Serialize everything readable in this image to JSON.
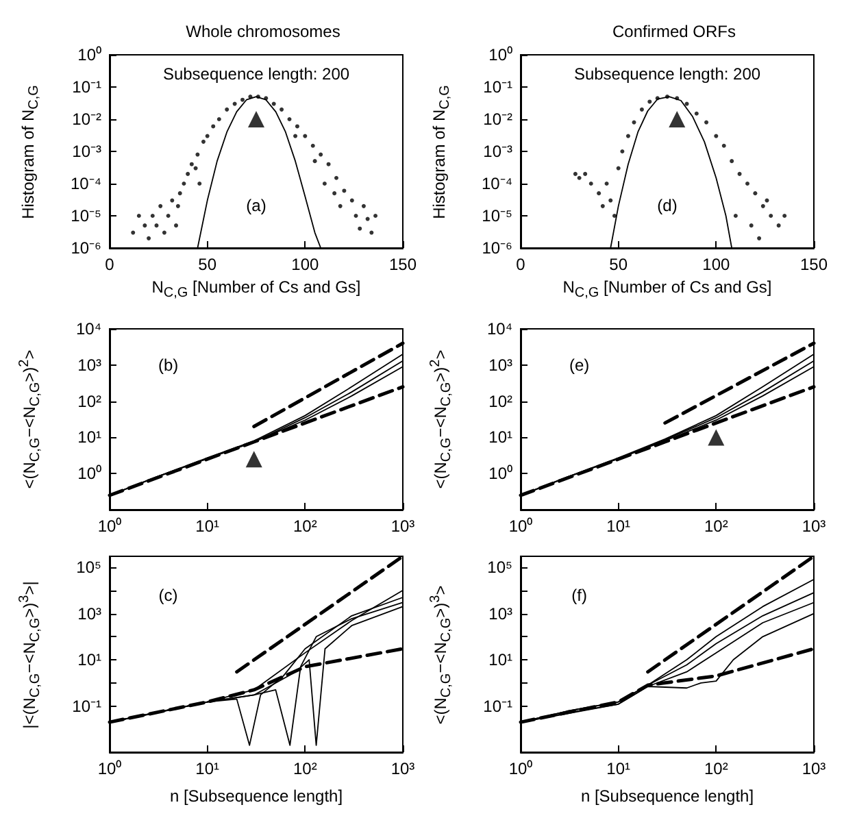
{
  "chart_data": [
    {
      "type": "scatter",
      "title": "Whole chromosomes",
      "xlabel": "N$_{C,G}$ [Number of Cs and Gs]",
      "ylabel": "Histogram of N$_{C,G}$",
      "log": "y",
      "xlim": [
        0,
        150
      ],
      "xticks": [
        0,
        50,
        100,
        150
      ],
      "ylim": [
        1e-06,
        1
      ],
      "yticks": [
        {
          "value": 1e-06,
          "label": "10⁻⁶"
        },
        {
          "value": 1e-05,
          "label": "10⁻⁵"
        },
        {
          "value": 0.0001,
          "label": "10⁻⁴"
        },
        {
          "value": 0.001,
          "label": "10⁻³"
        },
        {
          "value": 0.01,
          "label": "10⁻²"
        },
        {
          "value": 0.1,
          "label": "10⁻¹"
        },
        {
          "value": 1,
          "label": "10⁰"
        }
      ],
      "grid": false,
      "annotations": [
        "Subsequence length: 200",
        "(a)"
      ],
      "series": [
        {
          "marker": "circle",
          "color": "#000000",
          "x": [
            12,
            15,
            18,
            20,
            22,
            24,
            26,
            28,
            30,
            32,
            34,
            35,
            36,
            38,
            40,
            42,
            44,
            45,
            46,
            48,
            50,
            53,
            56,
            60,
            64,
            68,
            72,
            76,
            80,
            84,
            88,
            92,
            95,
            96,
            100,
            104,
            105,
            108,
            110,
            112,
            115,
            116,
            118,
            120,
            124,
            126,
            128,
            130,
            132,
            134,
            136
          ],
          "values": [
            3e-06,
            1e-05,
            5e-06,
            2e-06,
            1e-05,
            5e-06,
            2e-05,
            3e-06,
            1e-05,
            3e-05,
            5e-06,
            2e-05,
            5e-05,
            0.0001,
            0.0002,
            0.0004,
            0.0003,
            0.0008,
            0.0001,
            0.002,
            0.003,
            0.006,
            0.01,
            0.02,
            0.03,
            0.04,
            0.05,
            0.05,
            0.045,
            0.03,
            0.02,
            0.01,
            0.003,
            0.006,
            0.003,
            0.0015,
            0.0005,
            0.0008,
            0.0001,
            0.0004,
            5e-05,
            0.00015,
            2e-05,
            6e-05,
            3e-05,
            1e-05,
            4e-06,
            2e-05,
            8e-06,
            3e-06,
            1e-05
          ]
        },
        {
          "type": "line",
          "marker": "none",
          "line_style": "solid",
          "color": "#000000",
          "x": [
            45,
            50,
            55,
            60,
            65,
            70,
            75,
            80,
            85,
            90,
            95,
            100,
            105,
            108
          ],
          "values": [
            1e-06,
            3e-05,
            0.0005,
            0.004,
            0.017,
            0.04,
            0.05,
            0.04,
            0.017,
            0.004,
            0.0005,
            4e-05,
            3e-06,
            1e-06
          ]
        },
        {
          "marker": "triangle",
          "color": "#000000",
          "x": [
            75
          ],
          "values": [
            0.01
          ]
        }
      ]
    },
    {
      "type": "line",
      "ylabel": "<(N$_{C,G}$−<N$_{C,G}$>)$^{2}$>",
      "log": "xy",
      "xlim": [
        1,
        1000
      ],
      "xticks": [
        {
          "value": 1,
          "label": "10⁰"
        },
        {
          "value": 10,
          "label": "10¹"
        },
        {
          "value": 100,
          "label": "10²"
        },
        {
          "value": 1000,
          "label": "10³"
        }
      ],
      "ylim": [
        0.1,
        10000
      ],
      "yticks": [
        {
          "value": 1,
          "label": "10⁰"
        },
        {
          "value": 10,
          "label": "10¹"
        },
        {
          "value": 100,
          "label": "10²"
        },
        {
          "value": 1000,
          "label": "10³"
        },
        {
          "value": 10000,
          "label": "10⁴"
        }
      ],
      "grid": false,
      "annotations": [
        "(b)"
      ],
      "series": [
        {
          "marker": "none",
          "line_style": "solid",
          "color": "#000000",
          "x": [
            1,
            3,
            10,
            30,
            100,
            300,
            1000
          ],
          "values": [
            0.25,
            0.8,
            2.7,
            8,
            40,
            250,
            2000
          ]
        },
        {
          "marker": "none",
          "line_style": "solid",
          "color": "#000000",
          "x": [
            1,
            3,
            10,
            30,
            100,
            300,
            1000
          ],
          "values": [
            0.25,
            0.8,
            2.6,
            7.5,
            35,
            180,
            1300
          ]
        },
        {
          "marker": "none",
          "line_style": "solid",
          "color": "#000000",
          "x": [
            1,
            3,
            10,
            30,
            100,
            300,
            1000
          ],
          "values": [
            0.25,
            0.8,
            2.6,
            7.5,
            30,
            140,
            900
          ]
        },
        {
          "marker": "none",
          "line_style": "dashed",
          "color": "#000000",
          "x": [
            1,
            10,
            30,
            100,
            1000
          ],
          "values": [
            0.25,
            2.5,
            7.5,
            25,
            250
          ]
        },
        {
          "marker": "none",
          "line_style": "dashed",
          "color": "#000000",
          "x": [
            30,
            1000
          ],
          "values": [
            20,
            4000
          ]
        },
        {
          "type": "scatter",
          "marker": "triangle",
          "color": "#000000",
          "x": [
            30
          ],
          "values": [
            2.5
          ]
        }
      ]
    },
    {
      "type": "line",
      "xlabel": "n [Subsequence length]",
      "ylabel": "|<(N$_{C,G}$−<N$_{C,G}$>)$^{3}$>|",
      "log": "xy",
      "xlim": [
        1,
        1000
      ],
      "xticks": [
        {
          "value": 1,
          "label": "10⁰"
        },
        {
          "value": 10,
          "label": "10¹"
        },
        {
          "value": 100,
          "label": "10²"
        },
        {
          "value": 1000,
          "label": "10³"
        }
      ],
      "ylim": [
        0.001,
        300000
      ],
      "yticks": [
        {
          "value": 0.1,
          "label": "10⁻¹"
        },
        {
          "value": 1,
          "label": null
        },
        {
          "value": 10,
          "label": "10¹"
        },
        {
          "value": 100,
          "label": null
        },
        {
          "value": 1000,
          "label": "10³"
        },
        {
          "value": 10000,
          "label": null
        },
        {
          "value": 100000,
          "label": "10⁵"
        }
      ],
      "grid": false,
      "annotations": [
        "(c)"
      ],
      "series": [
        {
          "marker": "none",
          "line_style": "solid",
          "color": "#000000",
          "x": [
            1,
            3,
            10,
            30,
            100,
            300,
            1000
          ],
          "values": [
            0.02,
            0.05,
            0.15,
            0.5,
            20,
            500,
            10000
          ]
        },
        {
          "marker": "none",
          "line_style": "solid",
          "color": "#000000",
          "x": [
            1,
            10,
            20,
            27,
            35,
            60,
            100,
            300,
            1000
          ],
          "values": [
            0.02,
            0.15,
            0.2,
            0.002,
            0.3,
            2,
            30,
            800,
            5000
          ]
        },
        {
          "marker": "none",
          "line_style": "solid",
          "color": "#000000",
          "x": [
            1,
            10,
            30,
            50,
            70,
            90,
            130,
            300,
            1000
          ],
          "values": [
            0.02,
            0.15,
            0.3,
            0.5,
            0.002,
            5,
            100,
            600,
            3000
          ]
        },
        {
          "marker": "none",
          "line_style": "solid",
          "color": "#000000",
          "x": [
            1,
            10,
            30,
            80,
            110,
            130,
            160,
            300,
            1000
          ],
          "values": [
            0.02,
            0.15,
            0.3,
            3,
            10,
            0.002,
            30,
            300,
            2000
          ]
        },
        {
          "marker": "none",
          "line_style": "dashed",
          "color": "#000000",
          "x": [
            1,
            10,
            30,
            100,
            1000
          ],
          "values": [
            0.02,
            0.15,
            0.5,
            5,
            30
          ]
        },
        {
          "marker": "none",
          "line_style": "dashed",
          "color": "#000000",
          "x": [
            20,
            1000
          ],
          "values": [
            3,
            300000
          ]
        }
      ]
    },
    {
      "type": "scatter",
      "title": "Confirmed ORFs",
      "xlabel": "N$_{C,G}$ [Number of Cs and Gs]",
      "ylabel": "Histogram of N$_{C,G}$",
      "log": "y",
      "xlim": [
        0,
        150
      ],
      "xticks": [
        0,
        50,
        100,
        150
      ],
      "ylim": [
        1e-06,
        1
      ],
      "yticks": [
        {
          "value": 1e-06,
          "label": "10⁻⁶"
        },
        {
          "value": 1e-05,
          "label": "10⁻⁵"
        },
        {
          "value": 0.0001,
          "label": "10⁻⁴"
        },
        {
          "value": 0.001,
          "label": "10⁻³"
        },
        {
          "value": 0.01,
          "label": "10⁻²"
        },
        {
          "value": 0.1,
          "label": "10⁻¹"
        },
        {
          "value": 1,
          "label": "10⁰"
        }
      ],
      "grid": false,
      "annotations": [
        "Subsequence length: 200",
        "(d)"
      ],
      "series": [
        {
          "marker": "circle",
          "color": "#000000",
          "x": [
            28,
            30,
            33,
            36,
            40,
            42,
            44,
            46,
            48,
            50,
            52,
            55,
            58,
            62,
            66,
            70,
            75,
            80,
            85,
            90,
            95,
            100,
            104,
            108,
            110,
            112,
            116,
            118,
            120,
            122,
            124,
            126,
            128,
            132,
            135
          ],
          "values": [
            0.0002,
            0.00015,
            0.0002,
            0.0001,
            5e-05,
            2e-05,
            0.0001,
            3e-05,
            1e-05,
            0.0003,
            0.001,
            0.003,
            0.008,
            0.02,
            0.035,
            0.045,
            0.05,
            0.045,
            0.03,
            0.015,
            0.008,
            0.003,
            0.0015,
            0.0005,
            1e-05,
            0.0002,
            0.0001,
            5e-06,
            5e-05,
            2e-06,
            2e-05,
            3e-05,
            1e-05,
            5e-06,
            1e-05
          ]
        },
        {
          "type": "line",
          "marker": "none",
          "line_style": "solid",
          "color": "#000000",
          "x": [
            46,
            50,
            55,
            60,
            65,
            70,
            76,
            82,
            88,
            94,
            100,
            105,
            108
          ],
          "values": [
            1e-06,
            2e-05,
            0.0004,
            0.004,
            0.018,
            0.042,
            0.05,
            0.038,
            0.012,
            0.002,
            0.00015,
            1e-05,
            1e-06
          ]
        },
        {
          "marker": "triangle",
          "color": "#000000",
          "x": [
            80
          ],
          "values": [
            0.01
          ]
        }
      ]
    },
    {
      "type": "line",
      "ylabel": "<(N$_{C,G}$−<N$_{C,G}$>)$^{2}$>",
      "log": "xy",
      "xlim": [
        1,
        1000
      ],
      "xticks": [
        {
          "value": 1,
          "label": "10⁰"
        },
        {
          "value": 10,
          "label": "10¹"
        },
        {
          "value": 100,
          "label": "10²"
        },
        {
          "value": 1000,
          "label": "10³"
        }
      ],
      "ylim": [
        0.1,
        10000
      ],
      "yticks": [
        {
          "value": 1,
          "label": "10⁰"
        },
        {
          "value": 10,
          "label": "10¹"
        },
        {
          "value": 100,
          "label": "10²"
        },
        {
          "value": 1000,
          "label": "10³"
        },
        {
          "value": 10000,
          "label": "10⁴"
        }
      ],
      "grid": false,
      "annotations": [
        "(e)"
      ],
      "series": [
        {
          "marker": "none",
          "line_style": "solid",
          "color": "#000000",
          "x": [
            1,
            3,
            10,
            30,
            100,
            300,
            1000
          ],
          "values": [
            0.25,
            0.8,
            2.7,
            9,
            40,
            250,
            2000
          ]
        },
        {
          "marker": "none",
          "line_style": "solid",
          "color": "#000000",
          "x": [
            1,
            3,
            10,
            30,
            100,
            300,
            1000
          ],
          "values": [
            0.25,
            0.8,
            2.6,
            8.5,
            35,
            180,
            1300
          ]
        },
        {
          "marker": "none",
          "line_style": "solid",
          "color": "#000000",
          "x": [
            1,
            3,
            10,
            30,
            100,
            300,
            1000
          ],
          "values": [
            0.25,
            0.8,
            2.6,
            8,
            30,
            140,
            900
          ]
        },
        {
          "marker": "none",
          "line_style": "dashed",
          "color": "#000000",
          "x": [
            1,
            10,
            30,
            100,
            1000
          ],
          "values": [
            0.25,
            2.5,
            7.5,
            25,
            250
          ]
        },
        {
          "marker": "none",
          "line_style": "dashed",
          "color": "#000000",
          "x": [
            30,
            1000
          ],
          "values": [
            25,
            4000
          ]
        },
        {
          "type": "scatter",
          "marker": "triangle",
          "color": "#000000",
          "x": [
            100
          ],
          "values": [
            10
          ]
        }
      ]
    },
    {
      "type": "line",
      "xlabel": "n [Subsequence length]",
      "ylabel": "<(N$_{C,G}$−<N$_{C,G}$>)$^{3}$>",
      "log": "xy",
      "xlim": [
        1,
        1000
      ],
      "xticks": [
        {
          "value": 1,
          "label": "10⁰"
        },
        {
          "value": 10,
          "label": "10¹"
        },
        {
          "value": 100,
          "label": "10²"
        },
        {
          "value": 1000,
          "label": "10³"
        }
      ],
      "ylim": [
        0.001,
        300000
      ],
      "yticks": [
        {
          "value": 0.1,
          "label": "10⁻¹"
        },
        {
          "value": 1,
          "label": null
        },
        {
          "value": 10,
          "label": "10¹"
        },
        {
          "value": 100,
          "label": null
        },
        {
          "value": 1000,
          "label": "10³"
        },
        {
          "value": 10000,
          "label": null
        },
        {
          "value": 100000,
          "label": "10⁵"
        }
      ],
      "grid": false,
      "annotations": [
        "(f)"
      ],
      "series": [
        {
          "marker": "none",
          "line_style": "solid",
          "color": "#000000",
          "x": [
            1,
            3,
            10,
            20,
            50,
            100,
            300,
            1000
          ],
          "values": [
            0.02,
            0.06,
            0.15,
            0.8,
            10,
            100,
            2000,
            30000
          ]
        },
        {
          "marker": "none",
          "line_style": "solid",
          "color": "#000000",
          "x": [
            1,
            3,
            10,
            20,
            50,
            100,
            300,
            1000
          ],
          "values": [
            0.02,
            0.06,
            0.15,
            0.8,
            6,
            50,
            800,
            8000
          ]
        },
        {
          "marker": "none",
          "line_style": "solid",
          "color": "#000000",
          "x": [
            1,
            3,
            10,
            20,
            50,
            100,
            300,
            1000
          ],
          "values": [
            0.02,
            0.05,
            0.12,
            0.7,
            3,
            20,
            400,
            3000
          ]
        },
        {
          "marker": "none",
          "line_style": "solid",
          "color": "#000000",
          "x": [
            1,
            10,
            20,
            50,
            70,
            100,
            150,
            300,
            1000
          ],
          "values": [
            0.02,
            0.12,
            0.7,
            0.6,
            1,
            1.2,
            10,
            100,
            1000
          ]
        },
        {
          "marker": "none",
          "line_style": "dashed",
          "color": "#000000",
          "x": [
            1,
            10,
            20,
            100,
            1000
          ],
          "values": [
            0.02,
            0.15,
            0.8,
            2,
            30
          ]
        },
        {
          "marker": "none",
          "line_style": "dashed",
          "color": "#000000",
          "x": [
            20,
            1000
          ],
          "values": [
            3,
            300000
          ]
        }
      ]
    }
  ]
}
